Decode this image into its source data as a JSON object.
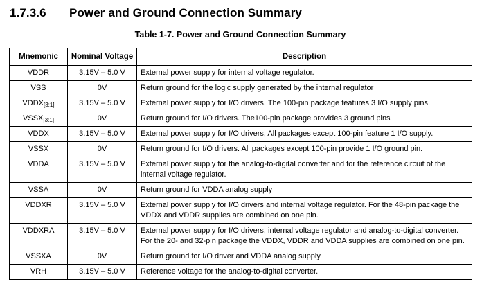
{
  "page": {
    "section_number": "1.7.3.6",
    "section_title": "Power and Ground Connection Summary",
    "table_caption": "Table 1-7. Power and Ground Connection Summary"
  },
  "table": {
    "headers": [
      "Mnemonic",
      "Nominal Voltage",
      "Description"
    ],
    "rows": [
      {
        "mnemonic": "VDDR",
        "sub": "",
        "voltage": "3.15V – 5.0 V",
        "description": "External power supply for internal voltage regulator."
      },
      {
        "mnemonic": "VSS",
        "sub": "",
        "voltage": "0V",
        "description": "Return ground for the logic supply generated by the internal regulator"
      },
      {
        "mnemonic": "VDDX",
        "sub": "[3:1]",
        "voltage": "3.15V – 5.0 V",
        "description": "External power supply for I/O drivers. The 100-pin package features 3 I/O supply pins."
      },
      {
        "mnemonic": "VSSX",
        "sub": "[3:1]",
        "voltage": "0V",
        "description": "Return ground for I/O drivers. The100-pin package provides 3 ground pins"
      },
      {
        "mnemonic": "VDDX",
        "sub": "",
        "voltage": "3.15V – 5.0 V",
        "description": "External power supply for I/O drivers, All packages except 100-pin feature 1 I/O supply."
      },
      {
        "mnemonic": "VSSX",
        "sub": "",
        "voltage": "0V",
        "description": "Return ground for I/O drivers. All packages except 100-pin provide 1 I/O ground pin."
      },
      {
        "mnemonic": "VDDA",
        "sub": "",
        "voltage": "3.15V – 5.0 V",
        "description": "External power supply for the analog-to-digital converter and for the reference circuit of the internal voltage regulator."
      },
      {
        "mnemonic": "VSSA",
        "sub": "",
        "voltage": "0V",
        "description": "Return ground for VDDA analog supply"
      },
      {
        "mnemonic": "VDDXR",
        "sub": "",
        "voltage": "3.15V – 5.0 V",
        "description": "External power supply for I/O drivers and internal voltage regulator. For the 48-pin package the VDDX and VDDR supplies are combined on one pin."
      },
      {
        "mnemonic": "VDDXRA",
        "sub": "",
        "voltage": "3.15V – 5.0 V",
        "description": "External power supply for I/O drivers, internal voltage regulator and analog-to-digital converter. For the 20- and 32-pin package the VDDX, VDDR and VDDA supplies are combined on one pin."
      },
      {
        "mnemonic": "VSSXA",
        "sub": "",
        "voltage": "0V",
        "description": "Return ground for I/O driver and VDDA analog supply"
      },
      {
        "mnemonic": "VRH",
        "sub": "",
        "voltage": "3.15V – 5.0 V",
        "description": "Reference voltage for the analog-to-digital converter."
      }
    ]
  },
  "colors": {
    "text": "#000000",
    "background": "#ffffff",
    "border": "#000000"
  }
}
